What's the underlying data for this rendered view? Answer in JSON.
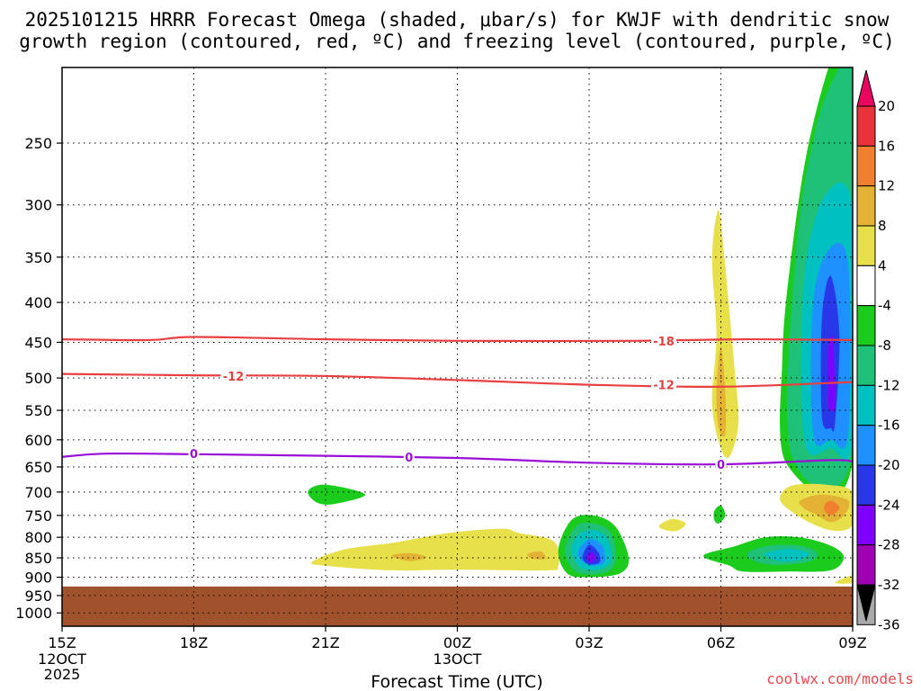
{
  "chart_data": {
    "type": "time-height contour",
    "title_lines": [
      "2025101215 HRRR Forecast Omega (shaded, μbar/s) for KWJF with dendritic snow",
      "growth region (contoured, red, ºC) and freezing level (contoured, purple, ºC)"
    ],
    "xlabel": "Forecast Time (UTC)",
    "x_ticks": [
      {
        "hour": 0,
        "label": "15Z",
        "date": [
          "12OCT",
          "2025"
        ]
      },
      {
        "hour": 3,
        "label": "18Z"
      },
      {
        "hour": 6,
        "label": "21Z"
      },
      {
        "hour": 9,
        "label": "00Z",
        "date": [
          "13OCT"
        ]
      },
      {
        "hour": 12,
        "label": "03Z"
      },
      {
        "hour": 15,
        "label": "06Z"
      },
      {
        "hour": 18,
        "label": "09Z"
      }
    ],
    "y_ticks": [
      250,
      300,
      350,
      400,
      450,
      500,
      550,
      600,
      650,
      700,
      750,
      800,
      850,
      900,
      950,
      1000
    ],
    "ylim_hpa": [
      200,
      1040
    ],
    "surface_pressure_hpa": 925,
    "colorbar": {
      "levels": [
        "20",
        "16",
        "12",
        "8",
        "4",
        "-4",
        "-8",
        "-12",
        "-16",
        "-20",
        "-24",
        "-28",
        "-32",
        "-36"
      ],
      "colors": [
        "#e8065e",
        "#e8323c",
        "#f08030",
        "#e4b234",
        "#e8e04a",
        "#ffffff",
        "#1ccc1c",
        "#1fc078",
        "#00c0c0",
        "#1e90ff",
        "#2838e8",
        "#8000ff",
        "#a000b4",
        "#a9a9a9",
        "#000000"
      ]
    },
    "contours": [
      {
        "name": "-18C isotherm",
        "color": "#e84040",
        "label": "-18",
        "points": [
          [
            0,
            446
          ],
          [
            2,
            447
          ],
          [
            3,
            443
          ],
          [
            6,
            446
          ],
          [
            9,
            448
          ],
          [
            13,
            448
          ],
          [
            15.5,
            446
          ],
          [
            18,
            447
          ]
        ]
      },
      {
        "name": "-12C isotherm",
        "color": "#e84040",
        "label": "-12",
        "points": [
          [
            0,
            494
          ],
          [
            3,
            496
          ],
          [
            6,
            497
          ],
          [
            9,
            503
          ],
          [
            12,
            510
          ],
          [
            15,
            513
          ],
          [
            18,
            506
          ]
        ]
      },
      {
        "name": "freezing level",
        "color": "#9a0fd6",
        "label": "0",
        "points": [
          [
            0,
            631
          ],
          [
            1,
            625
          ],
          [
            3,
            626
          ],
          [
            5,
            628
          ],
          [
            9,
            633
          ],
          [
            12,
            642
          ],
          [
            15,
            645
          ],
          [
            17.5,
            637
          ],
          [
            18,
            640
          ]
        ]
      }
    ],
    "contour_label_positions": [
      {
        "text": "-18",
        "color": "#e84040",
        "hour": 13.7,
        "hpa": 448
      },
      {
        "text": "-12",
        "color": "#e84040",
        "hour": 3.9,
        "hpa": 497
      },
      {
        "text": "-12",
        "color": "#e84040",
        "hour": 13.7,
        "hpa": 510
      },
      {
        "text": "0",
        "color": "#9a0fd6",
        "hour": 3.0,
        "hpa": 625
      },
      {
        "text": "0",
        "color": "#9a0fd6",
        "hour": 7.9,
        "hpa": 631
      },
      {
        "text": "0",
        "color": "#9a0fd6",
        "hour": 15.0,
        "hpa": 645
      }
    ],
    "shaded_regions": [
      {
        "name": "upper ascent green",
        "color": "#1ccc1c",
        "points": [
          [
            16.5,
            645
          ],
          [
            16.4,
            470
          ],
          [
            16.6,
            350
          ],
          [
            17.0,
            250
          ],
          [
            17.6,
            190
          ],
          [
            18.0,
            190
          ],
          [
            18.0,
            640
          ]
        ]
      },
      {
        "name": "upper ascent teal",
        "color": "#1fc078",
        "points": [
          [
            16.6,
            625
          ],
          [
            16.7,
            350
          ],
          [
            17.2,
            235
          ],
          [
            17.9,
            190
          ],
          [
            18.0,
            190
          ],
          [
            18.0,
            620
          ]
        ]
      },
      {
        "name": "upper ascent cyan",
        "color": "#00c0c0",
        "points": [
          [
            16.9,
            600
          ],
          [
            16.9,
            370
          ],
          [
            17.4,
            290
          ],
          [
            18.0,
            305
          ],
          [
            18.0,
            600
          ],
          [
            17.5,
            615
          ]
        ]
      },
      {
        "name": "upper ascent blue",
        "color": "#1e90ff",
        "points": [
          [
            17.1,
            590
          ],
          [
            17.1,
            400
          ],
          [
            17.5,
            340
          ],
          [
            17.9,
            360
          ],
          [
            17.9,
            590
          ],
          [
            17.5,
            600
          ]
        ]
      },
      {
        "name": "upper ascent dark blue",
        "color": "#2838e8",
        "points": [
          [
            17.3,
            560
          ],
          [
            17.3,
            420
          ],
          [
            17.5,
            370
          ],
          [
            17.7,
            440
          ],
          [
            17.6,
            570
          ],
          [
            17.5,
            580
          ]
        ]
      },
      {
        "name": "upper ascent purple",
        "color": "#8000ff",
        "points": [
          [
            17.45,
            540
          ],
          [
            17.45,
            460
          ],
          [
            17.55,
            445
          ],
          [
            17.6,
            540
          ],
          [
            17.5,
            550
          ]
        ]
      },
      {
        "name": "descent column yellow",
        "color": "#e8e04a",
        "points": [
          [
            15.0,
            615
          ],
          [
            14.8,
            540
          ],
          [
            14.9,
            440
          ],
          [
            14.8,
            350
          ],
          [
            14.95,
            305
          ],
          [
            15.1,
            360
          ],
          [
            15.3,
            480
          ],
          [
            15.4,
            570
          ],
          [
            15.2,
            630
          ]
        ]
      },
      {
        "name": "descent column orange",
        "color": "#e4b234",
        "points": [
          [
            14.95,
            580
          ],
          [
            14.9,
            520
          ],
          [
            15.0,
            455
          ],
          [
            15.1,
            520
          ],
          [
            15.1,
            590
          ]
        ]
      },
      {
        "name": "low-level green blob",
        "color": "#1ccc1c",
        "points": [
          [
            5.6,
            698
          ],
          [
            6.0,
            685
          ],
          [
            6.9,
            705
          ],
          [
            6.2,
            725
          ],
          [
            5.8,
            722
          ]
        ]
      },
      {
        "name": "low-level descent yellow",
        "color": "#e8e04a",
        "points": [
          [
            5.7,
            860
          ],
          [
            6.4,
            830
          ],
          [
            7.6,
            812
          ],
          [
            8.8,
            790
          ],
          [
            10.0,
            780
          ],
          [
            10.4,
            790
          ],
          [
            11.2,
            810
          ],
          [
            11.3,
            870
          ],
          [
            11.0,
            882
          ],
          [
            9.0,
            880
          ],
          [
            7.5,
            882
          ],
          [
            6.0,
            870
          ]
        ]
      },
      {
        "name": "low-level descent orange 1",
        "color": "#e4b234",
        "points": [
          [
            7.5,
            845
          ],
          [
            7.9,
            838
          ],
          [
            8.3,
            848
          ],
          [
            7.9,
            858
          ]
        ]
      },
      {
        "name": "low-level descent orange 2",
        "color": "#e4b234",
        "points": [
          [
            10.6,
            840
          ],
          [
            10.9,
            834
          ],
          [
            11.0,
            852
          ],
          [
            10.7,
            852
          ]
        ]
      },
      {
        "name": "small yellow blob",
        "color": "#e8e04a",
        "points": [
          [
            13.6,
            772
          ],
          [
            13.9,
            758
          ],
          [
            14.2,
            768
          ],
          [
            14.0,
            785
          ],
          [
            13.7,
            782
          ]
        ]
      },
      {
        "name": "low-level ascent green",
        "color": "#1ccc1c",
        "points": [
          [
            11.3,
            830
          ],
          [
            11.6,
            760
          ],
          [
            12.1,
            750
          ],
          [
            12.6,
            775
          ],
          [
            12.9,
            850
          ],
          [
            12.7,
            890
          ],
          [
            12.0,
            900
          ],
          [
            11.5,
            890
          ]
        ]
      },
      {
        "name": "low-level ascent teal",
        "color": "#1fc078",
        "points": [
          [
            11.45,
            830
          ],
          [
            11.7,
            775
          ],
          [
            12.1,
            768
          ],
          [
            12.5,
            790
          ],
          [
            12.6,
            860
          ],
          [
            12.3,
            890
          ],
          [
            11.7,
            885
          ]
        ]
      },
      {
        "name": "low-level ascent cyan",
        "color": "#00c0c0",
        "points": [
          [
            11.6,
            830
          ],
          [
            11.8,
            790
          ],
          [
            12.2,
            785
          ],
          [
            12.45,
            810
          ],
          [
            12.5,
            860
          ],
          [
            12.2,
            880
          ],
          [
            11.8,
            875
          ]
        ]
      },
      {
        "name": "low-level ascent blue",
        "color": "#1e90ff",
        "points": [
          [
            11.75,
            835
          ],
          [
            12.0,
            805
          ],
          [
            12.3,
            820
          ],
          [
            12.35,
            860
          ],
          [
            12.1,
            870
          ],
          [
            11.85,
            860
          ]
        ]
      },
      {
        "name": "low-level ascent dark blue",
        "color": "#2838e8",
        "points": [
          [
            11.85,
            845
          ],
          [
            12.0,
            818
          ],
          [
            12.2,
            835
          ],
          [
            12.25,
            860
          ],
          [
            12.05,
            867
          ],
          [
            11.9,
            860
          ]
        ]
      },
      {
        "name": "low-level ascent purple",
        "color": "#8000ff",
        "points": [
          [
            11.95,
            850
          ],
          [
            12.05,
            835
          ],
          [
            12.15,
            850
          ],
          [
            12.05,
            862
          ]
        ]
      },
      {
        "name": "small green sliver",
        "color": "#1ccc1c",
        "points": [
          [
            14.85,
            740
          ],
          [
            15.0,
            728
          ],
          [
            15.1,
            750
          ],
          [
            14.95,
            768
          ],
          [
            14.85,
            760
          ]
        ]
      },
      {
        "name": "late descent yellow",
        "color": "#e8e04a",
        "points": [
          [
            16.4,
            700
          ],
          [
            16.7,
            685
          ],
          [
            17.4,
            685
          ],
          [
            18.0,
            700
          ],
          [
            18.0,
            770
          ],
          [
            17.6,
            785
          ],
          [
            17.0,
            765
          ],
          [
            16.4,
            725
          ]
        ]
      },
      {
        "name": "late descent orange",
        "color": "#e4b234",
        "points": [
          [
            16.8,
            718
          ],
          [
            17.3,
            705
          ],
          [
            17.9,
            718
          ],
          [
            17.8,
            750
          ],
          [
            17.5,
            765
          ],
          [
            17.2,
            750
          ],
          [
            16.9,
            735
          ]
        ]
      },
      {
        "name": "late descent dark orange",
        "color": "#f08030",
        "points": [
          [
            17.35,
            730
          ],
          [
            17.5,
            718
          ],
          [
            17.7,
            732
          ],
          [
            17.55,
            748
          ],
          [
            17.4,
            745
          ]
        ]
      },
      {
        "name": "late ascent green",
        "color": "#1ccc1c",
        "points": [
          [
            14.6,
            845
          ],
          [
            15.3,
            822
          ],
          [
            16.0,
            800
          ],
          [
            16.8,
            800
          ],
          [
            17.5,
            820
          ],
          [
            17.8,
            848
          ],
          [
            17.5,
            882
          ],
          [
            16.5,
            885
          ],
          [
            15.5,
            885
          ],
          [
            15.2,
            870
          ]
        ]
      },
      {
        "name": "late ascent teal",
        "color": "#1fc078",
        "points": [
          [
            15.6,
            838
          ],
          [
            16.1,
            820
          ],
          [
            16.8,
            820
          ],
          [
            17.2,
            838
          ],
          [
            17.0,
            860
          ],
          [
            16.3,
            868
          ],
          [
            15.8,
            860
          ]
        ]
      },
      {
        "name": "late ascent cyan",
        "color": "#00c0c0",
        "points": [
          [
            16.0,
            840
          ],
          [
            16.5,
            828
          ],
          [
            17.0,
            838
          ],
          [
            16.8,
            855
          ],
          [
            16.3,
            858
          ]
        ]
      },
      {
        "name": "yellow sliver near surface",
        "color": "#e8e04a",
        "points": [
          [
            17.6,
            915
          ],
          [
            18.0,
            895
          ],
          [
            18.0,
            915
          ]
        ]
      }
    ]
  },
  "credit": "coolwx.com/models"
}
